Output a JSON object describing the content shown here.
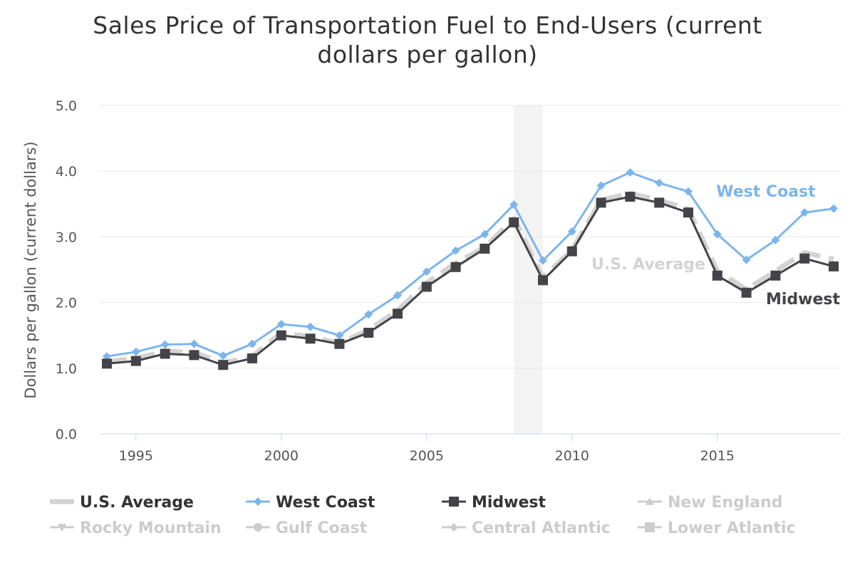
{
  "chart_data": {
    "type": "line",
    "title_lines": [
      "Sales Price of Transportation Fuel to End-Users (current",
      "dollars per gallon)"
    ],
    "ylabel": "Dollars per gallon (current dollars)",
    "xlabel": "",
    "ylim": [
      0,
      5
    ],
    "xlim": [
      1994,
      2019
    ],
    "y_ticks": [
      "0.0",
      "1.0",
      "2.0",
      "3.0",
      "4.0",
      "5.0"
    ],
    "x_ticks": [
      "1995",
      "2000",
      "2005",
      "2010",
      "2015"
    ],
    "shaded_band": {
      "from": 2008,
      "to": 2009
    },
    "x": [
      1994,
      1995,
      1996,
      1997,
      1998,
      1999,
      2000,
      2001,
      2002,
      2003,
      2004,
      2005,
      2006,
      2007,
      2008,
      2009,
      2010,
      2011,
      2012,
      2013,
      2014,
      2015,
      2016,
      2017,
      2018,
      2019
    ],
    "series": [
      {
        "name": "U.S. Average",
        "color": "#d3d3d3",
        "style": "dash",
        "marker": "none",
        "values": [
          1.1,
          1.15,
          1.26,
          1.24,
          1.08,
          1.18,
          1.54,
          1.48,
          1.38,
          1.58,
          1.88,
          2.3,
          2.6,
          2.84,
          3.28,
          2.38,
          2.8,
          3.56,
          3.66,
          3.56,
          3.42,
          2.48,
          2.2,
          2.48,
          2.76,
          2.66
        ],
        "inline_label": "U.S. Average"
      },
      {
        "name": "West Coast",
        "color": "#7cb5ec",
        "style": "solid",
        "marker": "diamond",
        "values": [
          1.18,
          1.25,
          1.36,
          1.37,
          1.19,
          1.37,
          1.67,
          1.63,
          1.5,
          1.82,
          2.11,
          2.47,
          2.79,
          3.04,
          3.49,
          2.64,
          3.08,
          3.78,
          3.98,
          3.82,
          3.69,
          3.04,
          2.65,
          2.95,
          3.37,
          3.43
        ],
        "inline_label": "West Coast"
      },
      {
        "name": "Midwest",
        "color": "#434348",
        "style": "solid",
        "marker": "square",
        "values": [
          1.07,
          1.11,
          1.22,
          1.2,
          1.05,
          1.15,
          1.5,
          1.45,
          1.37,
          1.54,
          1.83,
          2.24,
          2.54,
          2.82,
          3.22,
          2.34,
          2.78,
          3.52,
          3.61,
          3.52,
          3.37,
          2.41,
          2.15,
          2.41,
          2.67,
          2.55
        ],
        "inline_label": "Midwest"
      }
    ],
    "legend": {
      "placement": "bottom",
      "items": [
        {
          "name": "U.S. Average",
          "symbol": "dash",
          "color": "#d3d3d3",
          "text_color": "#333333",
          "active": true
        },
        {
          "name": "West Coast",
          "symbol": "diamond",
          "color": "#7cb5ec",
          "text_color": "#333333",
          "active": true
        },
        {
          "name": "Midwest",
          "symbol": "square",
          "color": "#434348",
          "text_color": "#333333",
          "active": true
        },
        {
          "name": "New England",
          "symbol": "triangle",
          "color": "#cccccc",
          "text_color": "#cccccc",
          "active": false
        },
        {
          "name": "Rocky Mountain",
          "symbol": "triangle-down",
          "color": "#cccccc",
          "text_color": "#cccccc",
          "active": false
        },
        {
          "name": "Gulf Coast",
          "symbol": "circle",
          "color": "#cccccc",
          "text_color": "#cccccc",
          "active": false
        },
        {
          "name": "Central Atlantic",
          "symbol": "diamond",
          "color": "#cccccc",
          "text_color": "#cccccc",
          "active": false
        },
        {
          "name": "Lower Atlantic",
          "symbol": "square",
          "color": "#cccccc",
          "text_color": "#cccccc",
          "active": false
        }
      ]
    }
  }
}
